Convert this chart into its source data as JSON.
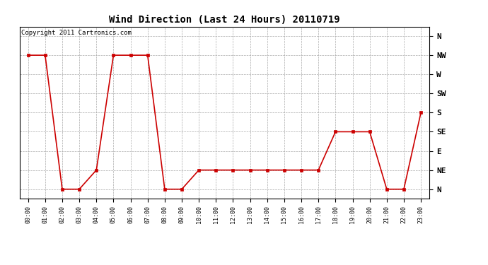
{
  "title": "Wind Direction (Last 24 Hours) 20110719",
  "copyright_text": "Copyright 2011 Cartronics.com",
  "line_color": "#cc0000",
  "marker": "s",
  "marker_size": 2.5,
  "background_color": "#ffffff",
  "grid_color": "#aaaaaa",
  "y_labels": [
    "N",
    "NE",
    "E",
    "SE",
    "S",
    "SW",
    "W",
    "NW",
    "N"
  ],
  "y_values": [
    0,
    1,
    2,
    3,
    4,
    5,
    6,
    7,
    8
  ],
  "hours": [
    0,
    1,
    2,
    3,
    4,
    5,
    6,
    7,
    8,
    9,
    10,
    11,
    12,
    13,
    14,
    15,
    16,
    17,
    18,
    19,
    20,
    21,
    22,
    23
  ],
  "wind_values": [
    7,
    7,
    0,
    0,
    1,
    7,
    7,
    7,
    0,
    0,
    1,
    1,
    1,
    1,
    1,
    1,
    1,
    1,
    3,
    3,
    3,
    0,
    0,
    4
  ],
  "figwidth_inches": 6.9,
  "figheight_inches": 3.75,
  "dpi": 100,
  "title_fontsize": 10,
  "tick_fontsize": 6,
  "copyright_fontsize": 6.5,
  "y_tick_fontsize": 8
}
